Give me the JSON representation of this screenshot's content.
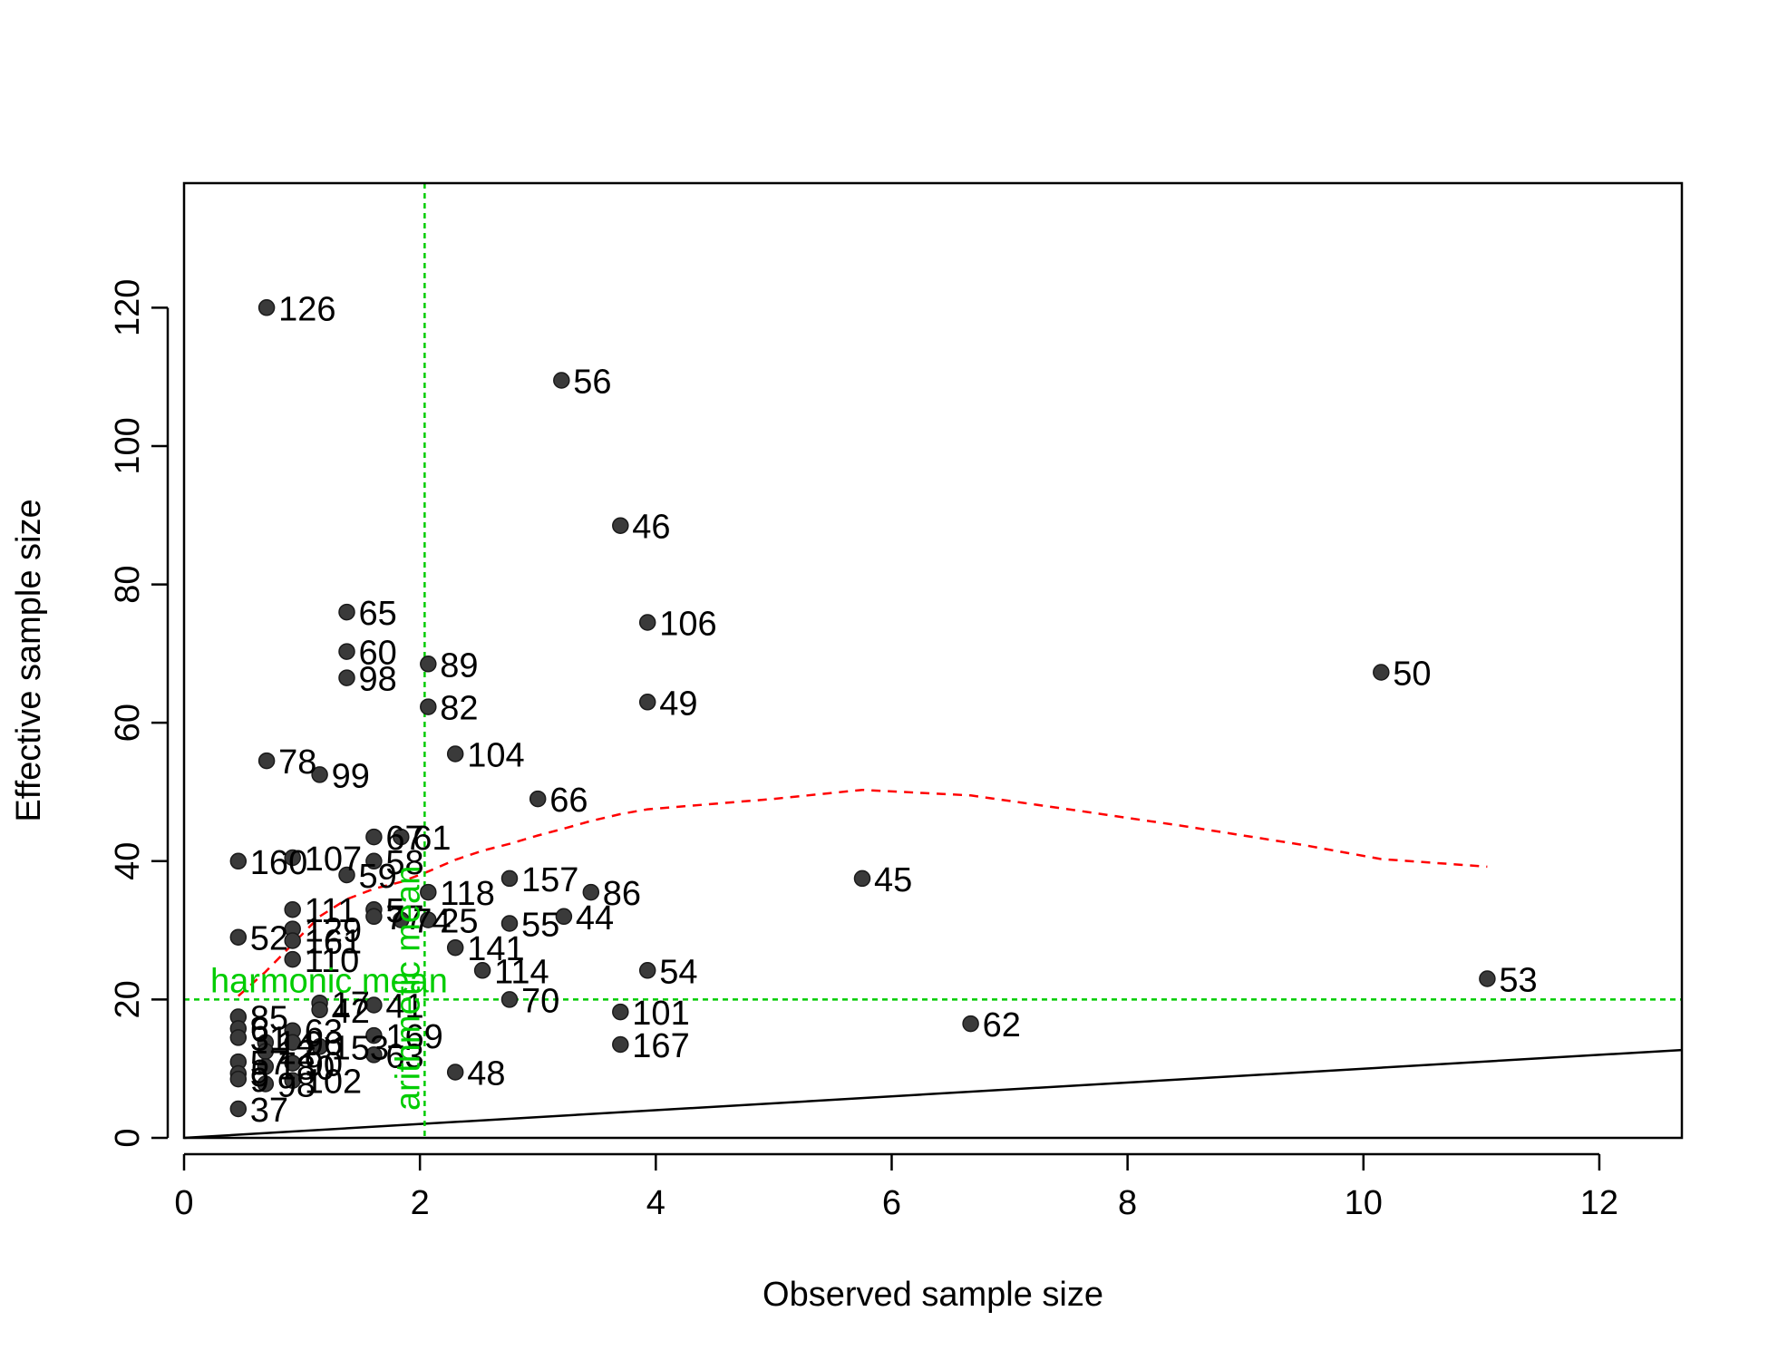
{
  "chart_data": {
    "type": "scatter",
    "title": "",
    "xlabel": "Observed sample size",
    "ylabel": "Effective sample size",
    "xlim": [
      0,
      12.7
    ],
    "ylim": [
      0,
      138
    ],
    "xticks": [
      0,
      2,
      4,
      6,
      8,
      10,
      12
    ],
    "yticks": [
      0,
      20,
      40,
      60,
      80,
      100,
      120
    ],
    "grid": false,
    "colors": {
      "point": "#3a3a3a",
      "reference_lines": "#00cc00",
      "trend_line": "#ff0000",
      "identity_line": "#000000"
    },
    "points": [
      {
        "x": 0.7,
        "y": 120,
        "label": "126"
      },
      {
        "x": 3.2,
        "y": 109.5,
        "label": "56"
      },
      {
        "x": 3.7,
        "y": 88.5,
        "label": "46"
      },
      {
        "x": 3.93,
        "y": 74.5,
        "label": "106"
      },
      {
        "x": 1.38,
        "y": 76,
        "label": "65"
      },
      {
        "x": 1.38,
        "y": 70.3,
        "label": "60"
      },
      {
        "x": 1.38,
        "y": 66.5,
        "label": "98"
      },
      {
        "x": 2.07,
        "y": 68.5,
        "label": "89"
      },
      {
        "x": 2.07,
        "y": 62.3,
        "label": "82"
      },
      {
        "x": 3.93,
        "y": 63,
        "label": "49"
      },
      {
        "x": 10.15,
        "y": 67.3,
        "label": "50"
      },
      {
        "x": 0.7,
        "y": 54.5,
        "label": "78"
      },
      {
        "x": 1.15,
        "y": 52.5,
        "label": "99"
      },
      {
        "x": 2.3,
        "y": 55.5,
        "label": "104"
      },
      {
        "x": 3.0,
        "y": 49,
        "label": "66"
      },
      {
        "x": 0.46,
        "y": 40,
        "label": "160"
      },
      {
        "x": 0.92,
        "y": 40.5,
        "label": "107"
      },
      {
        "x": 1.61,
        "y": 43.5,
        "label": "67"
      },
      {
        "x": 1.84,
        "y": 43.5,
        "label": "61"
      },
      {
        "x": 1.61,
        "y": 40,
        "label": "58"
      },
      {
        "x": 1.38,
        "y": 38,
        "label": "59"
      },
      {
        "x": 2.07,
        "y": 35.5,
        "label": "118"
      },
      {
        "x": 2.76,
        "y": 37.5,
        "label": "157"
      },
      {
        "x": 3.45,
        "y": 35.5,
        "label": "86"
      },
      {
        "x": 5.75,
        "y": 37.5,
        "label": "45"
      },
      {
        "x": 0.92,
        "y": 33,
        "label": "111"
      },
      {
        "x": 1.61,
        "y": 33,
        "label": "5"
      },
      {
        "x": 1.61,
        "y": 32,
        "label": "77"
      },
      {
        "x": 1.84,
        "y": 31.5,
        "label": "74"
      },
      {
        "x": 2.07,
        "y": 31.5,
        "label": "25"
      },
      {
        "x": 2.76,
        "y": 31,
        "label": "55"
      },
      {
        "x": 3.22,
        "y": 32,
        "label": "44"
      },
      {
        "x": 0.92,
        "y": 30.2,
        "label": "129"
      },
      {
        "x": 0.46,
        "y": 29,
        "label": "52"
      },
      {
        "x": 0.92,
        "y": 28.5,
        "label": "161"
      },
      {
        "x": 2.3,
        "y": 27.5,
        "label": "141"
      },
      {
        "x": 0.92,
        "y": 25.8,
        "label": "110"
      },
      {
        "x": 2.53,
        "y": 24.2,
        "label": "114"
      },
      {
        "x": 3.93,
        "y": 24.2,
        "label": "54"
      },
      {
        "x": 11.05,
        "y": 23,
        "label": "53"
      },
      {
        "x": 2.76,
        "y": 20,
        "label": "70"
      },
      {
        "x": 1.15,
        "y": 19.5,
        "label": "17"
      },
      {
        "x": 1.61,
        "y": 19.2,
        "label": "41"
      },
      {
        "x": 1.15,
        "y": 18.5,
        "label": "42"
      },
      {
        "x": 3.7,
        "y": 18.2,
        "label": "101"
      },
      {
        "x": 0.46,
        "y": 17.5,
        "label": "85"
      },
      {
        "x": 6.67,
        "y": 16.5,
        "label": "62"
      },
      {
        "x": 0.46,
        "y": 15.8,
        "label": "6"
      },
      {
        "x": 0.92,
        "y": 15.5,
        "label": "63"
      },
      {
        "x": 0.46,
        "y": 14.5,
        "label": "31"
      },
      {
        "x": 1.61,
        "y": 14.8,
        "label": "169"
      },
      {
        "x": 0.69,
        "y": 13.8,
        "label": "14"
      },
      {
        "x": 0.92,
        "y": 13.8,
        "label": "96"
      },
      {
        "x": 3.7,
        "y": 13.5,
        "label": "167"
      },
      {
        "x": 1.15,
        "y": 13.2,
        "label": "153"
      },
      {
        "x": 0.69,
        "y": 12.5,
        "label": "12"
      },
      {
        "x": 1.61,
        "y": 12,
        "label": "63"
      },
      {
        "x": 0.46,
        "y": 11,
        "label": "57"
      },
      {
        "x": 0.92,
        "y": 10.8,
        "label": "90"
      },
      {
        "x": 0.69,
        "y": 10.3,
        "label": "180"
      },
      {
        "x": 2.3,
        "y": 9.5,
        "label": "48"
      },
      {
        "x": 0.46,
        "y": 9.3,
        "label": "5"
      },
      {
        "x": 0.46,
        "y": 8.5,
        "label": "9"
      },
      {
        "x": 0.92,
        "y": 8.3,
        "label": "102"
      },
      {
        "x": 0.69,
        "y": 7.8,
        "label": "98"
      },
      {
        "x": 0.46,
        "y": 4.2,
        "label": "37"
      }
    ],
    "reference_lines": {
      "horizontal": {
        "y": 20,
        "label": "harmonic mean"
      },
      "vertical": {
        "x": 2.04,
        "label": "arithmetic mean"
      }
    },
    "trend_line": {
      "style": "dashed",
      "x": [
        0.46,
        0.69,
        0.92,
        1.15,
        1.38,
        1.61,
        1.84,
        2.07,
        2.3,
        2.53,
        2.76,
        3.0,
        3.22,
        3.45,
        3.7,
        3.93,
        4.5,
        5.0,
        5.75,
        6.67,
        7.5,
        8.5,
        9.5,
        10.15,
        11.05
      ],
      "y": [
        20.5,
        24,
        28,
        32,
        34.5,
        36,
        37,
        38.5,
        40.2,
        41.5,
        42.5,
        43.7,
        44.7,
        45.8,
        46.8,
        47.5,
        48.3,
        49,
        50.3,
        49.5,
        47.5,
        45,
        42.3,
        40.3,
        39.2
      ]
    },
    "identity_line": {
      "slope": 1,
      "intercept": 0
    }
  }
}
